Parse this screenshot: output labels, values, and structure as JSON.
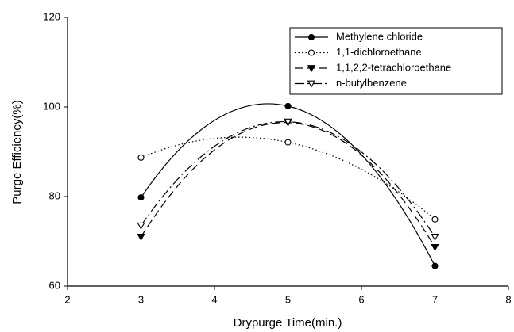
{
  "chart_data": {
    "type": "line",
    "xlabel": "Drypurge Time(min.)",
    "ylabel": "Purge Efficiency(%)",
    "x": [
      3,
      5,
      7
    ],
    "series": [
      {
        "name": "Methylene chloride",
        "color": "#000000",
        "marker": "circle-filled",
        "linestyle": "solid",
        "values": [
          79.8,
          100.2,
          64.5
        ]
      },
      {
        "name": "1,1-dichloroethane",
        "color": "#000000",
        "marker": "circle-open",
        "linestyle": "dotted",
        "values": [
          88.7,
          92.1,
          74.9
        ]
      },
      {
        "name": "1,1,2,2-tetrachloroethane",
        "color": "#000000",
        "marker": "triangle-down-filled",
        "linestyle": "dashed",
        "values": [
          71.0,
          96.5,
          68.7
        ]
      },
      {
        "name": "n-butylbenzene",
        "color": "#000000",
        "marker": "triangle-down-open",
        "linestyle": "dashdot",
        "values": [
          73.5,
          96.7,
          71.0
        ]
      }
    ],
    "xlim": [
      2,
      8
    ],
    "xticks": [
      2,
      3,
      4,
      5,
      6,
      7,
      8
    ],
    "ylim": [
      60,
      120
    ],
    "yticks": [
      60,
      80,
      100,
      120
    ],
    "legend": "upper right"
  }
}
